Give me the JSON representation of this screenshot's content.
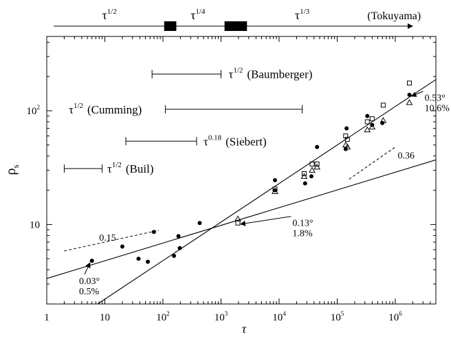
{
  "chart_data": {
    "type": "scatter",
    "xscale": "log",
    "yscale": "log",
    "xlim": [
      1,
      5000000
    ],
    "ylim": [
      2,
      450
    ],
    "xlabel": "τ",
    "ylabel": "ρ",
    "ylabel_sub": "s",
    "xticks": [
      {
        "v": 1,
        "base": "1",
        "exp": ""
      },
      {
        "v": 10,
        "base": "10",
        "exp": ""
      },
      {
        "v": 100,
        "base": "10",
        "exp": "2"
      },
      {
        "v": 1000,
        "base": "10",
        "exp": "3"
      },
      {
        "v": 10000,
        "base": "10",
        "exp": "4"
      },
      {
        "v": 100000,
        "base": "10",
        "exp": "5"
      },
      {
        "v": 1000000,
        "base": "10",
        "exp": "6"
      }
    ],
    "yticks": [
      {
        "v": 10,
        "base": "10",
        "exp": ""
      },
      {
        "v": 100,
        "base": "10",
        "exp": "2"
      }
    ],
    "series": [
      {
        "marker": "filled-circle",
        "points": [
          [
            6,
            4.8
          ],
          [
            20,
            6.4
          ],
          [
            38,
            5.0
          ],
          [
            55,
            4.7
          ],
          [
            70,
            8.6
          ],
          [
            155,
            5.3
          ],
          [
            185,
            7.9
          ],
          [
            195,
            6.2
          ],
          [
            430,
            10.3
          ],
          [
            8500,
            24.5
          ],
          [
            8500,
            20.0
          ],
          [
            28000,
            23.0
          ],
          [
            36000,
            26.5
          ],
          [
            45000,
            48.0
          ],
          [
            140000,
            46.0
          ],
          [
            145000,
            70.0
          ],
          [
            330000,
            90.0
          ],
          [
            400000,
            75.0
          ],
          [
            600000,
            78.0
          ],
          [
            1750000,
            138.0
          ]
        ]
      },
      {
        "marker": "open-square",
        "points": [
          [
            1950,
            10.3
          ],
          [
            8500,
            20.5
          ],
          [
            27000,
            28.0
          ],
          [
            37000,
            34.0
          ],
          [
            45000,
            34.0
          ],
          [
            140000,
            60.0
          ],
          [
            150000,
            56.0
          ],
          [
            330000,
            80.0
          ],
          [
            400000,
            85.0
          ],
          [
            620000,
            112.0
          ],
          [
            1750000,
            175.0
          ]
        ]
      },
      {
        "marker": "open-triangle",
        "points": [
          [
            1950,
            11.2
          ],
          [
            8500,
            19.5
          ],
          [
            27000,
            26.5
          ],
          [
            37000,
            30.0
          ],
          [
            45000,
            32.0
          ],
          [
            140000,
            50.0
          ],
          [
            150000,
            48.0
          ],
          [
            330000,
            68.0
          ],
          [
            400000,
            72.0
          ],
          [
            620000,
            82.0
          ],
          [
            1750000,
            118.0
          ]
        ]
      }
    ],
    "fit_lines": [
      {
        "from": [
          1,
          3.35
        ],
        "to": [
          5000000,
          37.0
        ]
      },
      {
        "from": [
          7.5,
          2.0
        ],
        "to": [
          5000000,
          188.0
        ]
      }
    ],
    "dashed_lines": [
      {
        "label": "0.15",
        "from": [
          2,
          5.85
        ],
        "to": [
          85,
          8.9
        ]
      },
      {
        "label": "0.36",
        "from": [
          160000,
          25.0
        ],
        "to": [
          1000000,
          48.0
        ]
      }
    ],
    "slope_labels": [
      {
        "text": "0.15",
        "at": [
          8,
          7.2
        ]
      },
      {
        "text": "0.36",
        "at": [
          1100000,
          38.0
        ]
      }
    ],
    "annotations": [
      {
        "line1": "0.03°",
        "line2": "0.5%",
        "point": [
          6,
          4.8
        ],
        "text_at": [
          3.6,
          3.0
        ]
      },
      {
        "line1": "0.13°",
        "line2": "1.8%",
        "point": [
          2000,
          10.5
        ],
        "text_at": [
          17000,
          9.7
        ]
      },
      {
        "line1": "0.53°",
        "line2": "10.6%",
        "point": [
          1750000,
          140.0
        ],
        "text_at": [
          3200000,
          122.0
        ]
      }
    ],
    "ranges": [
      {
        "x": [
          65,
          1000
        ],
        "y": 210,
        "base": "τ",
        "exp": "1/2",
        "label": "(Baumberger)",
        "text_at": 1350,
        "text_side": "right"
      },
      {
        "x": [
          110,
          25000
        ],
        "y": 103,
        "base": "τ",
        "exp": "1/2",
        "label": "(Cumming)",
        "text_at": 2.4,
        "text_side": "right"
      },
      {
        "x": [
          23,
          380
        ],
        "y": 54,
        "base": "τ",
        "exp": "0.18",
        "label": "(Siebert)",
        "text_at": 500,
        "text_side": "right"
      },
      {
        "x": [
          2,
          9
        ],
        "y": 31,
        "base": "τ",
        "exp": "1/2",
        "label": "(Buil)",
        "text_at": 11,
        "text_side": "right"
      }
    ],
    "top_axis": {
      "labels": [
        {
          "base": "τ",
          "exp": "1/2",
          "at": 12
        },
        {
          "base": "τ",
          "exp": "1/4",
          "at": 400
        },
        {
          "base": "τ",
          "exp": "1/3",
          "at": 25000
        }
      ],
      "name": "(Tokuyama)",
      "name_at": 330000,
      "boxes": [
        [
          105,
          170
        ],
        [
          1150,
          2800
        ]
      ]
    }
  }
}
